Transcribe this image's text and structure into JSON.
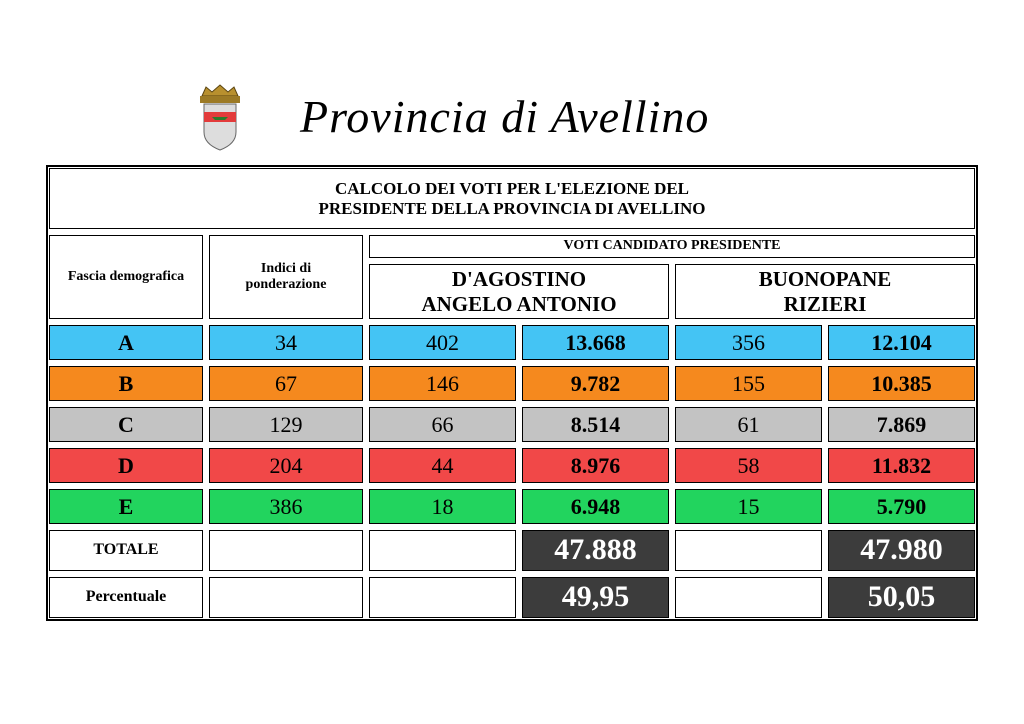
{
  "header": {
    "title": "Provincia di Avellino"
  },
  "table": {
    "caption": [
      "CALCOLO DEI VOTI PER L'ELEZIONE DEL",
      "PRESIDENTE DELLA PROVINCIA DI AVELLINO"
    ],
    "col_fascia": "Fascia demografica",
    "col_indici": [
      "Indici di",
      "ponderazione"
    ],
    "col_voti": "VOTI CANDIDATO PRESIDENTE",
    "candidates": [
      [
        "D'AGOSTINO",
        "ANGELO ANTONIO"
      ],
      [
        "BUONOPANE",
        "RIZIERI"
      ]
    ],
    "rows": [
      {
        "label": "A",
        "color": "#44c4f4",
        "values": [
          "34",
          "402",
          "13.668",
          "356",
          "12.104"
        ]
      },
      {
        "label": "B",
        "color": "#f5891e",
        "values": [
          "67",
          "146",
          "9.782",
          "155",
          "10.385"
        ]
      },
      {
        "label": "C",
        "color": "#c3c3c3",
        "values": [
          "129",
          "66",
          "8.514",
          "61",
          "7.869"
        ]
      },
      {
        "label": "D",
        "color": "#f14848",
        "values": [
          "204",
          "44",
          "8.976",
          "58",
          "11.832"
        ]
      },
      {
        "label": "E",
        "color": "#22d45e",
        "values": [
          "386",
          "18",
          "6.948",
          "15",
          "5.790"
        ]
      }
    ],
    "totale": {
      "label": "TOTALE",
      "values": [
        "47.888",
        "47.980"
      ]
    },
    "percentuale": {
      "label": "Percentuale",
      "values": [
        "49,95",
        "50,05"
      ]
    }
  }
}
